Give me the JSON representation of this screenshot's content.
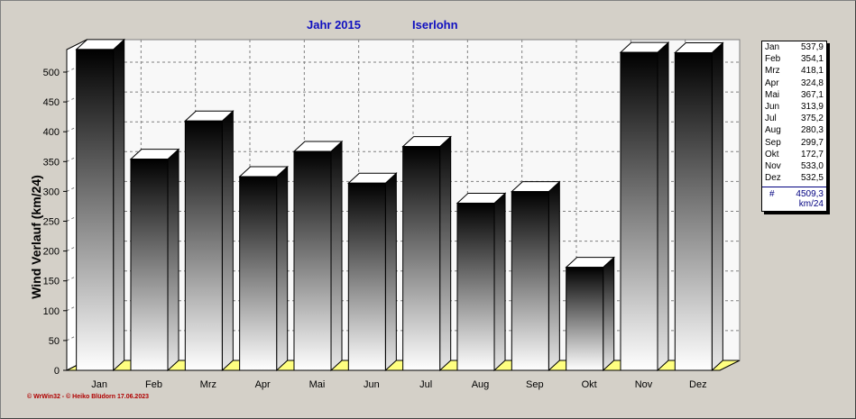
{
  "title": {
    "year": "Jahr  2015",
    "city": "Iserlohn"
  },
  "footer": "© WrWin32  -  © Heiko Blüdorn  17.06.2023",
  "chart_data": {
    "type": "bar",
    "categories": [
      "Jan",
      "Feb",
      "Mrz",
      "Apr",
      "Mai",
      "Jun",
      "Jul",
      "Aug",
      "Sep",
      "Okt",
      "Nov",
      "Dez"
    ],
    "values": [
      537.9,
      354.1,
      418.1,
      324.8,
      367.1,
      313.9,
      375.2,
      280.3,
      299.7,
      172.7,
      533.0,
      532.5
    ],
    "value_labels": [
      "537,9",
      "354,1",
      "418,1",
      "324,8",
      "367,1",
      "313,9",
      "375,2",
      "280,3",
      "299,7",
      "172,7",
      "533,0",
      "532,5"
    ],
    "ylabel": "Wind Verlauf  (km/24)",
    "ylim": [
      0,
      540
    ],
    "yticks": [
      0,
      50,
      100,
      150,
      200,
      250,
      300,
      350,
      400,
      450,
      500
    ],
    "grid": true,
    "legend_position": "right",
    "total_label": "#",
    "total_value": "4509,3",
    "total_unit": "km/24"
  },
  "colors": {
    "bar_top": "#000000",
    "bar_bottom": "#ffffff",
    "floor": "#ffff80",
    "grid": "#808080",
    "title": "#1010c0"
  }
}
